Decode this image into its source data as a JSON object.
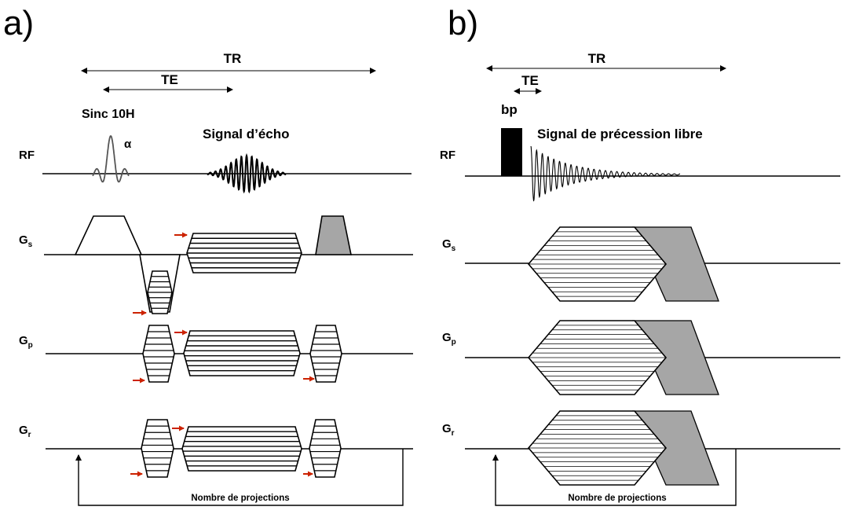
{
  "panel_a": {
    "label": "a)",
    "tr": "TR",
    "te": "TE",
    "pulse": "Sinc 10H",
    "alpha": "α",
    "signal": "Signal d’écho",
    "rf": "RF",
    "gs": {
      "main": "G",
      "sub": "s"
    },
    "gp": {
      "main": "G",
      "sub": "p"
    },
    "gr": {
      "main": "G",
      "sub": "r"
    },
    "loop": "Nombre de projections"
  },
  "panel_b": {
    "label": "b)",
    "tr": "TR",
    "te": "TE",
    "pulse": "bp",
    "signal": "Signal de précession libre",
    "rf": "RF",
    "gs": {
      "main": "G",
      "sub": "s"
    },
    "gp": {
      "main": "G",
      "sub": "p"
    },
    "gr": {
      "main": "G",
      "sub": "r"
    },
    "loop": "Nombre de projections"
  },
  "colors": {
    "arrow_accent": "#cc2200",
    "spoiler_fill": "#a6a6a6",
    "line": "#000000"
  }
}
